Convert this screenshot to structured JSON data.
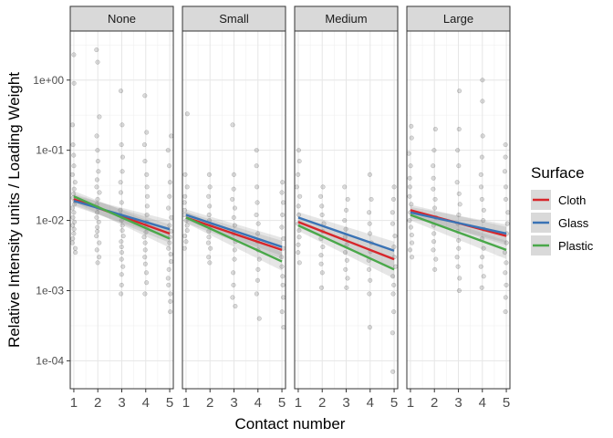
{
  "chart_data": {
    "type": "scatter",
    "facets": [
      "None",
      "Small",
      "Medium",
      "Large"
    ],
    "xlabel": "Contact number",
    "ylabel": "Relative Intensity units / Loading Weight",
    "x_ticks": [
      "1",
      "2",
      "3",
      "4",
      "5"
    ],
    "y_scale": "log10",
    "y_ticks": [
      {
        "value": 1,
        "label": "1e+00"
      },
      {
        "value": 0.1,
        "label": "1e-01"
      },
      {
        "value": 0.01,
        "label": "1e-02"
      },
      {
        "value": 0.001,
        "label": "1e-03"
      },
      {
        "value": 0.0001,
        "label": "1e-04"
      }
    ],
    "ylim": [
      4e-05,
      5
    ],
    "xlim": [
      0.85,
      5.15
    ],
    "grid": true,
    "legend": {
      "title": "Surface",
      "position": "right"
    },
    "series": [
      {
        "name": "Cloth",
        "color": "#d7262b"
      },
      {
        "name": "Glass",
        "color": "#3a73b5"
      },
      {
        "name": "Plastic",
        "color": "#4aa84a"
      }
    ],
    "trend_lines": [
      {
        "facet": "None",
        "series": "Cloth",
        "y_at_1": 0.02,
        "y_at_5": 0.0065
      },
      {
        "facet": "None",
        "series": "Glass",
        "y_at_1": 0.019,
        "y_at_5": 0.0075
      },
      {
        "facet": "None",
        "series": "Plastic",
        "y_at_1": 0.022,
        "y_at_5": 0.0055
      },
      {
        "facet": "Small",
        "series": "Cloth",
        "y_at_1": 0.011,
        "y_at_5": 0.0038
      },
      {
        "facet": "Small",
        "series": "Glass",
        "y_at_1": 0.012,
        "y_at_5": 0.0042
      },
      {
        "facet": "Small",
        "series": "Plastic",
        "y_at_1": 0.011,
        "y_at_5": 0.0026
      },
      {
        "facet": "Medium",
        "series": "Cloth",
        "y_at_1": 0.0095,
        "y_at_5": 0.0028
      },
      {
        "facet": "Medium",
        "series": "Glass",
        "y_at_1": 0.011,
        "y_at_5": 0.0037
      },
      {
        "facet": "Medium",
        "series": "Plastic",
        "y_at_1": 0.0085,
        "y_at_5": 0.002
      },
      {
        "facet": "Large",
        "series": "Cloth",
        "y_at_1": 0.014,
        "y_at_5": 0.006
      },
      {
        "facet": "Large",
        "series": "Glass",
        "y_at_1": 0.013,
        "y_at_5": 0.0065
      },
      {
        "facet": "Large",
        "series": "Plastic",
        "y_at_1": 0.012,
        "y_at_5": 0.0038
      }
    ],
    "points": [
      {
        "facet": "None",
        "x": 1,
        "y": [
          2.3,
          0.9,
          0.23,
          0.12,
          0.085,
          0.06,
          0.045,
          0.035,
          0.028,
          0.024,
          0.021,
          0.019,
          0.017,
          0.015,
          0.013,
          0.011,
          0.0095,
          0.0085,
          0.0075,
          0.0065,
          0.0055,
          0.0048,
          0.004,
          0.0035
        ]
      },
      {
        "facet": "None",
        "x": 2,
        "y": [
          2.7,
          1.8,
          0.3,
          0.16,
          0.1,
          0.07,
          0.05,
          0.038,
          0.03,
          0.025,
          0.02,
          0.017,
          0.015,
          0.013,
          0.011,
          0.0095,
          0.008,
          0.007,
          0.006,
          0.0048,
          0.0038,
          0.003,
          0.0025
        ]
      },
      {
        "facet": "None",
        "x": 3,
        "y": [
          0.7,
          0.23,
          0.12,
          0.08,
          0.05,
          0.035,
          0.025,
          0.018,
          0.014,
          0.012,
          0.01,
          0.0085,
          0.0072,
          0.006,
          0.005,
          0.0042,
          0.0035,
          0.0028,
          0.0022,
          0.0017,
          0.0012,
          0.0009
        ]
      },
      {
        "facet": "None",
        "x": 4,
        "y": [
          0.6,
          0.18,
          0.12,
          0.07,
          0.045,
          0.03,
          0.022,
          0.016,
          0.012,
          0.0095,
          0.008,
          0.0068,
          0.0058,
          0.0048,
          0.0038,
          0.003,
          0.0024,
          0.0018,
          0.0013,
          0.0009
        ]
      },
      {
        "facet": "None",
        "x": 5,
        "y": [
          0.16,
          0.1,
          0.06,
          0.035,
          0.022,
          0.015,
          0.011,
          0.0085,
          0.007,
          0.0058,
          0.0048,
          0.004,
          0.0033,
          0.0026,
          0.002,
          0.0015,
          0.0012,
          0.0009,
          0.0007,
          0.0005
        ]
      },
      {
        "facet": "Small",
        "x": 1,
        "y": [
          0.33,
          0.045,
          0.03,
          0.022,
          0.018,
          0.014,
          0.012,
          0.01,
          0.0085,
          0.0072,
          0.006,
          0.005,
          0.004
        ]
      },
      {
        "facet": "Small",
        "x": 2,
        "y": [
          0.045,
          0.03,
          0.022,
          0.016,
          0.012,
          0.01,
          0.0085,
          0.007,
          0.0058,
          0.0048,
          0.004,
          0.003,
          0.0025
        ]
      },
      {
        "facet": "Small",
        "x": 3,
        "y": [
          0.23,
          0.045,
          0.028,
          0.02,
          0.015,
          0.011,
          0.0085,
          0.0065,
          0.005,
          0.0038,
          0.0028,
          0.0018,
          0.0012,
          0.0008,
          0.0006
        ]
      },
      {
        "facet": "Small",
        "x": 4,
        "y": [
          0.1,
          0.06,
          0.03,
          0.018,
          0.012,
          0.009,
          0.0065,
          0.005,
          0.0038,
          0.0028,
          0.002,
          0.0014,
          0.0009,
          0.0004
        ]
      },
      {
        "facet": "Small",
        "x": 5,
        "y": [
          0.035,
          0.025,
          0.018,
          0.012,
          0.008,
          0.0055,
          0.004,
          0.003,
          0.0022,
          0.0016,
          0.0012,
          0.0008,
          0.0005,
          0.0003
        ]
      },
      {
        "facet": "Medium",
        "x": 1,
        "y": [
          0.1,
          0.07,
          0.045,
          0.03,
          0.022,
          0.016,
          0.012,
          0.009,
          0.0072,
          0.0058,
          0.0045,
          0.0035,
          0.0025
        ]
      },
      {
        "facet": "Medium",
        "x": 2,
        "y": [
          0.03,
          0.022,
          0.016,
          0.012,
          0.009,
          0.007,
          0.0055,
          0.0042,
          0.0032,
          0.0024,
          0.0018,
          0.0011
        ]
      },
      {
        "facet": "Medium",
        "x": 3,
        "y": [
          0.03,
          0.02,
          0.014,
          0.01,
          0.0075,
          0.0058,
          0.0045,
          0.0035,
          0.0027,
          0.002,
          0.0015,
          0.0011
        ]
      },
      {
        "facet": "Medium",
        "x": 4,
        "y": [
          0.045,
          0.02,
          0.013,
          0.009,
          0.0065,
          0.0048,
          0.0036,
          0.0027,
          0.002,
          0.0014,
          0.0009,
          0.0003
        ]
      },
      {
        "facet": "Medium",
        "x": 5,
        "y": [
          0.03,
          0.02,
          0.013,
          0.009,
          0.006,
          0.0042,
          0.003,
          0.0022,
          0.0016,
          0.0012,
          0.0009,
          0.0005,
          0.00025,
          7e-05
        ]
      },
      {
        "facet": "Large",
        "x": 1,
        "y": [
          0.22,
          0.15,
          0.09,
          0.06,
          0.04,
          0.03,
          0.022,
          0.017,
          0.013,
          0.01,
          0.008,
          0.0062,
          0.0048,
          0.0038,
          0.003
        ]
      },
      {
        "facet": "Large",
        "x": 2,
        "y": [
          0.2,
          0.1,
          0.06,
          0.04,
          0.028,
          0.02,
          0.015,
          0.011,
          0.0085,
          0.0065,
          0.005,
          0.0038,
          0.0028,
          0.002
        ]
      },
      {
        "facet": "Large",
        "x": 3,
        "y": [
          0.7,
          0.2,
          0.1,
          0.06,
          0.035,
          0.024,
          0.017,
          0.012,
          0.009,
          0.007,
          0.0052,
          0.004,
          0.003,
          0.0022,
          0.0015,
          0.001
        ]
      },
      {
        "facet": "Large",
        "x": 4,
        "y": [
          1.0,
          0.5,
          0.16,
          0.08,
          0.045,
          0.03,
          0.02,
          0.014,
          0.01,
          0.0075,
          0.0055,
          0.004,
          0.003,
          0.0022,
          0.0016,
          0.0011
        ]
      },
      {
        "facet": "Large",
        "x": 5,
        "y": [
          0.12,
          0.08,
          0.05,
          0.03,
          0.02,
          0.013,
          0.009,
          0.0065,
          0.0048,
          0.0035,
          0.0025,
          0.0018,
          0.0012,
          0.0008,
          0.0005
        ]
      }
    ]
  }
}
